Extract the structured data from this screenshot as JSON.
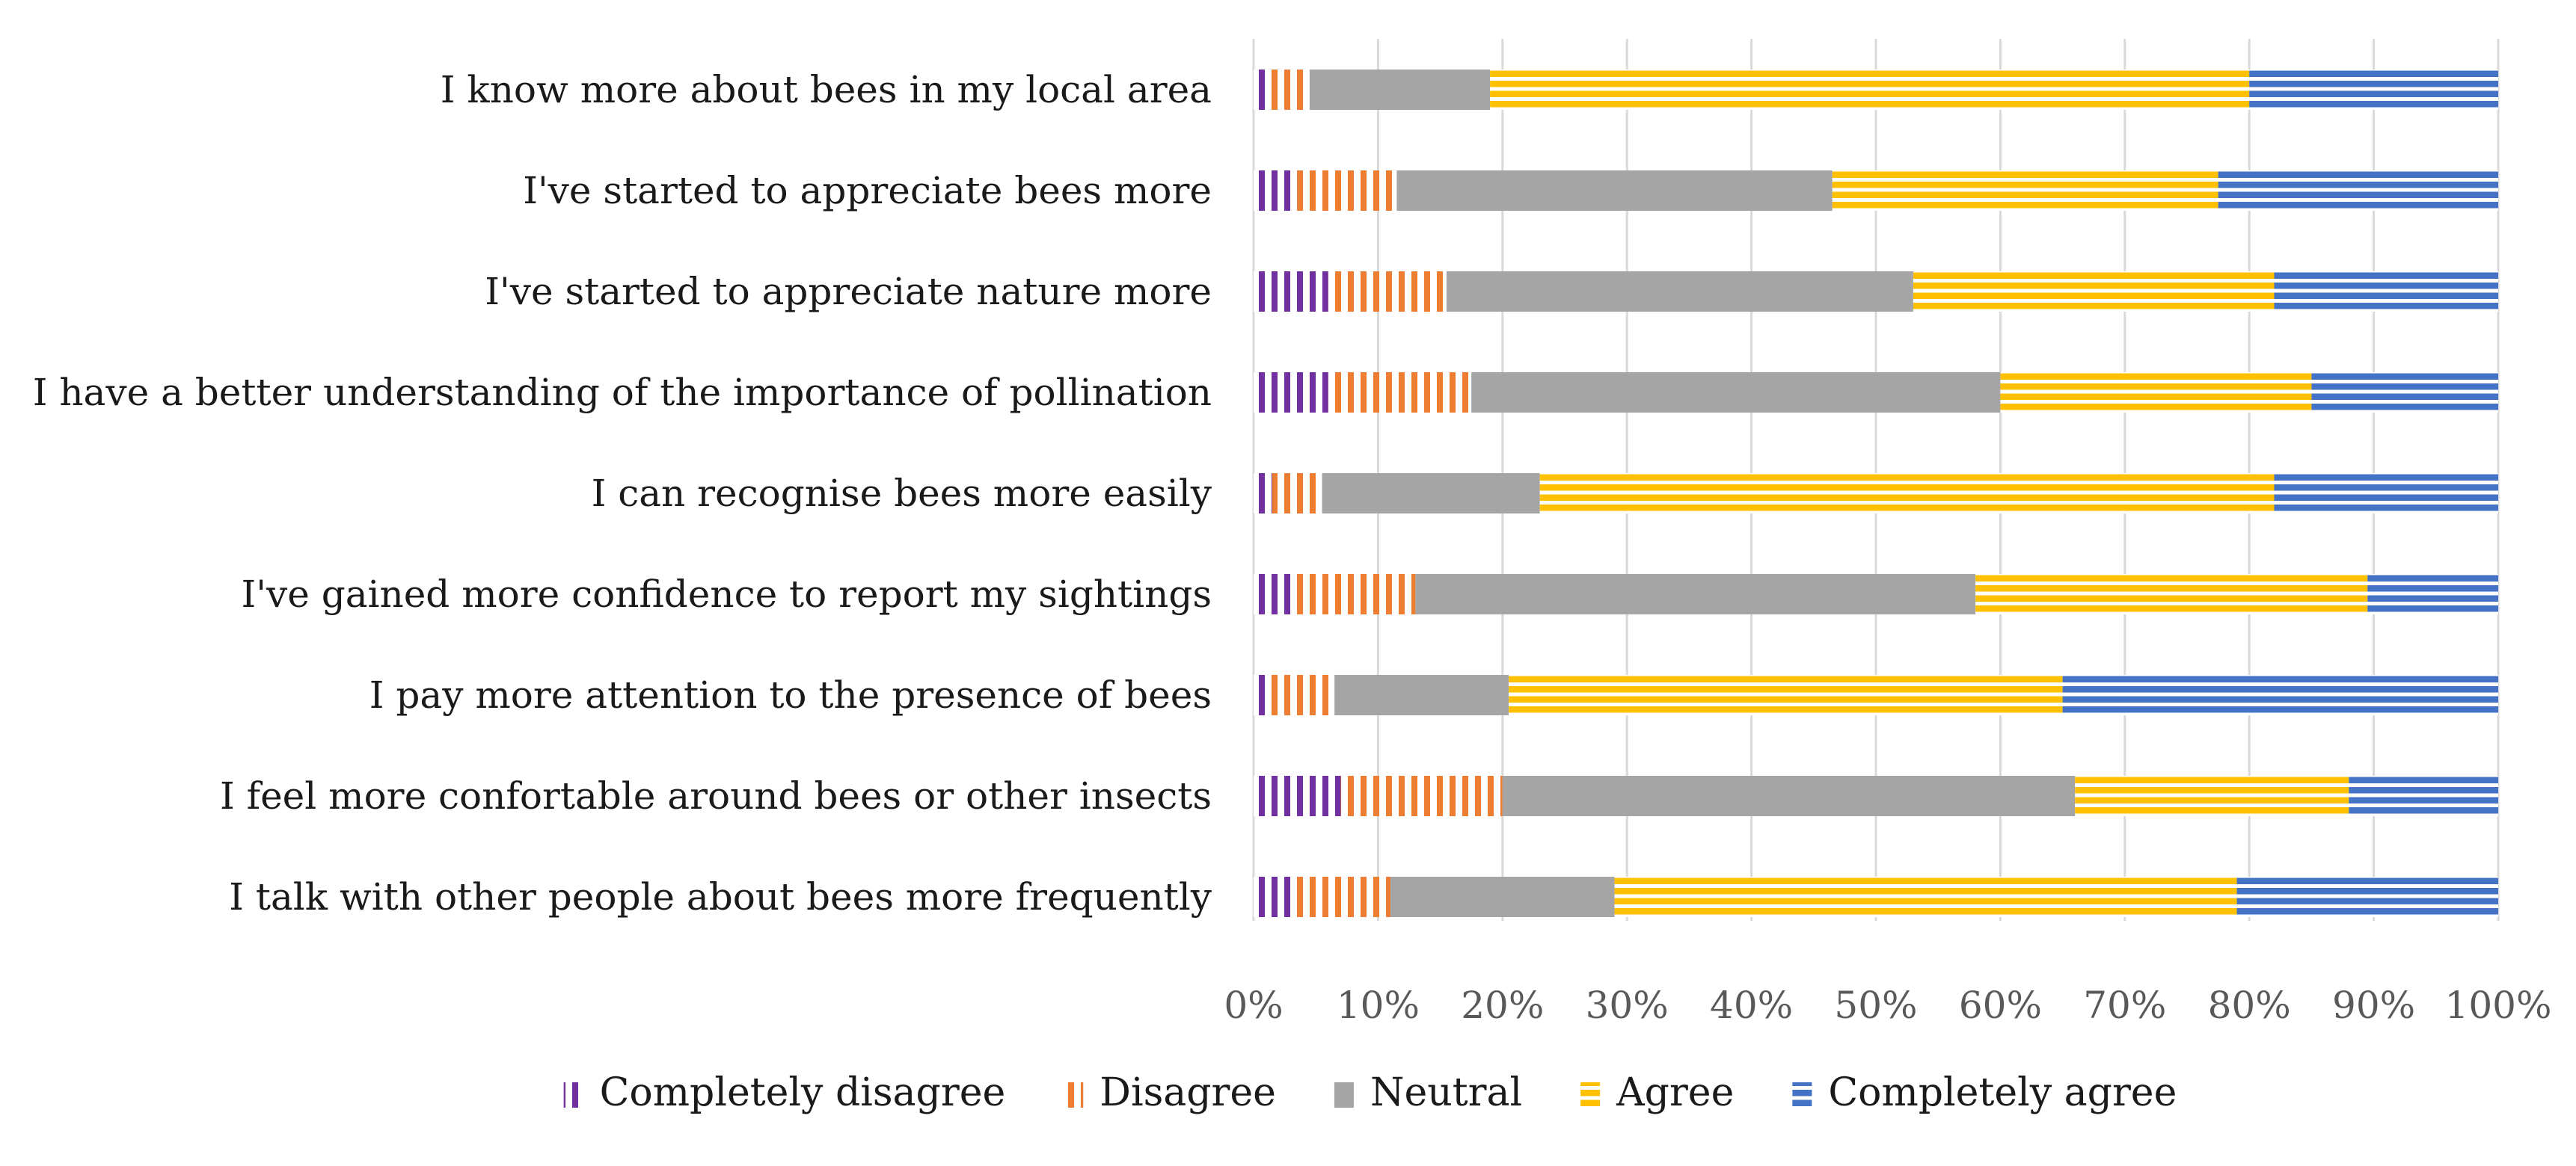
{
  "chart_data": {
    "type": "bar",
    "orientation": "horizontal",
    "stacked": "percent",
    "title": "",
    "xlabel": "",
    "ylabel": "",
    "xlim": [
      0,
      100
    ],
    "x_ticks": [
      "0%",
      "10%",
      "20%",
      "30%",
      "40%",
      "50%",
      "60%",
      "70%",
      "80%",
      "90%",
      "100%"
    ],
    "grid": "vertical",
    "legend_position": "bottom",
    "categories": [
      "I know more about bees in my local area",
      "I've started to appreciate bees more",
      "I've started to appreciate nature more",
      "I have a better understanding of the importance of pollination",
      "I can recognise bees more easily",
      "I've gained more confidence to report my sightings",
      "I pay more attention to the presence of bees",
      "I feel more confortable around bees or other insects",
      "I talk with other people about bees more frequently"
    ],
    "series": [
      {
        "name": "Completely disagree",
        "color": "#7030a0",
        "pattern": "vertical-stripes",
        "values": [
          1.0,
          3.5,
          6.0,
          6.0,
          1.5,
          3.0,
          1.0,
          7.0,
          3.0
        ]
      },
      {
        "name": "Disagree",
        "color": "#ed7d31",
        "pattern": "vertical-stripes",
        "values": [
          3.5,
          8.0,
          9.5,
          11.5,
          4.0,
          10.0,
          5.5,
          13.0,
          8.0
        ]
      },
      {
        "name": "Neutral",
        "color": "#a5a5a5",
        "pattern": "solid",
        "values": [
          14.5,
          35.0,
          37.5,
          42.5,
          17.5,
          45.0,
          14.0,
          46.0,
          18.0
        ]
      },
      {
        "name": "Agree",
        "color": "#ffc000",
        "pattern": "horizontal-stripes",
        "values": [
          61.0,
          31.0,
          29.0,
          25.0,
          59.0,
          31.5,
          44.5,
          22.0,
          50.0
        ]
      },
      {
        "name": "Completely agree",
        "color": "#4472c4",
        "pattern": "horizontal-stripes",
        "values": [
          20.0,
          22.5,
          18.0,
          15.0,
          18.0,
          10.5,
          35.0,
          12.0,
          21.0
        ]
      }
    ]
  }
}
